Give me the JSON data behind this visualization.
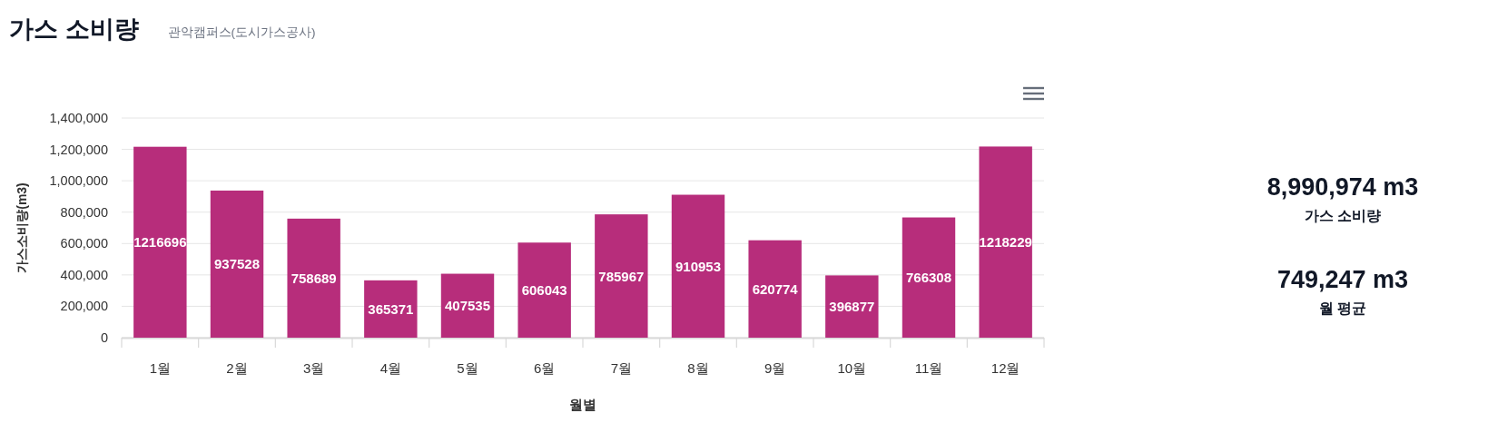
{
  "chart_data": [
    {
      "type": "bar",
      "title": "가스 소비량",
      "subtitle": "관악캠퍼스(도시가스공사)",
      "xlabel": "월별",
      "ylabel": "가스소비량(m3)",
      "categories": [
        "1월",
        "2월",
        "3월",
        "4월",
        "5월",
        "6월",
        "7월",
        "8월",
        "9월",
        "10월",
        "11월",
        "12월"
      ],
      "values": [
        1216696,
        937528,
        758689,
        365371,
        407535,
        606043,
        785967,
        910953,
        620774,
        396877,
        766308,
        1218229
      ],
      "color": "#b72d7b",
      "ylim": [
        0,
        1400000
      ],
      "yticks": [
        0,
        {
          "value": 200000,
          "label": "200,000"
        },
        {
          "value": 400000,
          "label": "400,000"
        },
        {
          "value": 600000,
          "label": "600,000"
        },
        {
          "value": 800000,
          "label": "800,000"
        },
        {
          "value": 1000000,
          "label": "1,000,000"
        },
        {
          "value": 1200000,
          "label": "1,200,000"
        },
        {
          "value": 1400000,
          "label": "1,400,000"
        }
      ],
      "grid": "y",
      "data_labels": true
    },
    {
      "type": "other",
      "annotations": [
        "8,990,974 m3",
        "가스 소비량",
        "749,247 m3",
        "월 평균"
      ]
    }
  ]
}
